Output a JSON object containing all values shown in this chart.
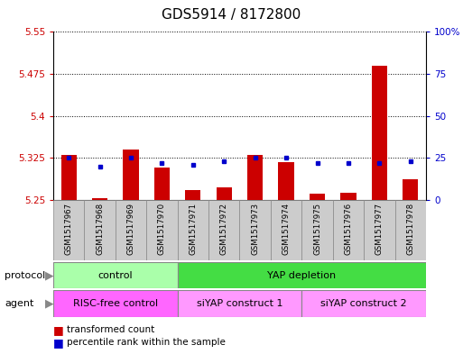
{
  "title": "GDS5914 / 8172800",
  "samples": [
    "GSM1517967",
    "GSM1517968",
    "GSM1517969",
    "GSM1517970",
    "GSM1517971",
    "GSM1517972",
    "GSM1517973",
    "GSM1517974",
    "GSM1517975",
    "GSM1517976",
    "GSM1517977",
    "GSM1517978"
  ],
  "transformed_count": [
    5.33,
    5.253,
    5.34,
    5.308,
    5.268,
    5.272,
    5.33,
    5.318,
    5.262,
    5.263,
    5.49,
    5.287
  ],
  "percentile_rank": [
    25,
    20,
    25,
    22,
    21,
    23,
    25,
    25,
    22,
    22,
    22,
    23
  ],
  "ylim_left": [
    5.25,
    5.55
  ],
  "ylim_right": [
    0,
    100
  ],
  "yticks_left": [
    5.25,
    5.325,
    5.4,
    5.475,
    5.55
  ],
  "yticks_right": [
    0,
    25,
    50,
    75,
    100
  ],
  "ytick_labels_left": [
    "5.25",
    "5.325",
    "5.4",
    "5.475",
    "5.55"
  ],
  "ytick_labels_right": [
    "0",
    "25",
    "50",
    "75",
    "100%"
  ],
  "bar_color": "#cc0000",
  "dot_color": "#0000cc",
  "protocol_groups": [
    {
      "label": "control",
      "start": 0,
      "end": 3,
      "color": "#aaffaa"
    },
    {
      "label": "YAP depletion",
      "start": 4,
      "end": 11,
      "color": "#44dd44"
    }
  ],
  "agent_groups": [
    {
      "label": "RISC-free control",
      "start": 0,
      "end": 3,
      "color": "#ff66ff"
    },
    {
      "label": "siYAP construct 1",
      "start": 4,
      "end": 7,
      "color": "#ff99ff"
    },
    {
      "label": "siYAP construct 2",
      "start": 8,
      "end": 11,
      "color": "#ff99ff"
    }
  ],
  "legend_items": [
    {
      "label": "transformed count",
      "color": "#cc0000"
    },
    {
      "label": "percentile rank within the sample",
      "color": "#0000cc"
    }
  ],
  "bar_width": 0.5,
  "title_fontsize": 11,
  "sample_cell_color": "#cccccc",
  "sample_cell_edge": "#888888"
}
